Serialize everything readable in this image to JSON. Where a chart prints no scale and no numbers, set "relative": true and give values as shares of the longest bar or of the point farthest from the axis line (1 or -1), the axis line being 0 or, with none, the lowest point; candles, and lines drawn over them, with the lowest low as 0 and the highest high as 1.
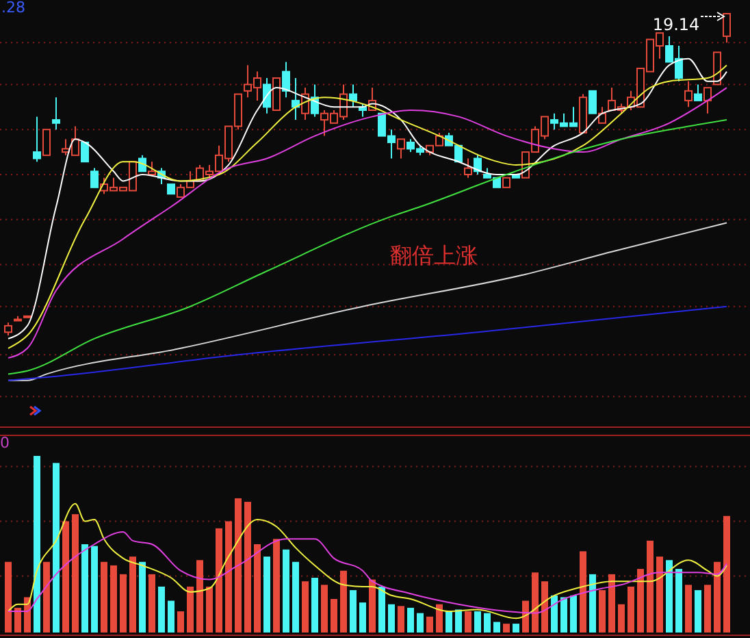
{
  "chart_data": [
    {
      "type": "candlestick",
      "relative": true,
      "ref_lines": [
        {
          "axis": "y",
          "value": 0.91,
          "color": "#8a1c1c",
          "line_style": "dotted"
        },
        {
          "axis": "y",
          "value": 0.78,
          "color": "#8a1c1c",
          "line_style": "dotted"
        },
        {
          "axis": "y",
          "value": 0.64,
          "color": "#8a1c1c",
          "line_style": "dotted"
        },
        {
          "axis": "y",
          "value": 0.5,
          "color": "#8a1c1c",
          "line_style": "dotted"
        },
        {
          "axis": "y",
          "value": 0.36,
          "color": "#8a1c1c",
          "line_style": "dotted"
        },
        {
          "axis": "y",
          "value": 0.22,
          "color": "#8a1c1c",
          "line_style": "dotted"
        },
        {
          "axis": "y",
          "value": 0.09,
          "color": "#8a1c1c",
          "line_style": "dotted"
        },
        {
          "axis": "y",
          "value": -0.06,
          "color": "#8a1c1c",
          "line_style": "dotted"
        },
        {
          "axis": "y",
          "value": -0.19,
          "color": "#8a1c1c",
          "line_style": "dotted"
        }
      ],
      "categories": [
        null,
        null,
        null,
        null,
        null,
        null,
        null,
        null,
        null,
        null,
        null,
        null,
        null,
        null,
        null,
        null,
        null,
        null,
        null,
        null,
        null,
        null,
        null,
        null,
        null,
        null,
        null,
        null,
        null,
        null,
        null,
        null,
        null,
        null,
        null,
        null,
        null,
        null,
        null,
        null,
        null,
        null,
        null,
        null,
        null,
        null,
        null,
        null,
        null,
        null,
        null,
        null,
        null,
        null,
        null,
        null,
        null,
        null,
        null,
        null,
        null,
        null,
        null,
        null,
        null,
        null,
        null,
        null,
        null,
        null,
        null,
        null,
        null,
        null,
        null,
        null
      ],
      "ohlc": [
        [
          0.01,
          0.04,
          0,
          0.03
        ],
        [
          0.05,
          0.06,
          0.05,
          0.05
        ],
        [
          0.06,
          0.06,
          0.06,
          0.06
        ],
        [
          0.57,
          0.68,
          0.54,
          0.55
        ],
        [
          0.56,
          0.64,
          0.56,
          0.64
        ],
        [
          0.67,
          0.74,
          0.64,
          0.66
        ],
        [
          0.57,
          0.61,
          0.56,
          0.58
        ],
        [
          0.56,
          0.65,
          0.56,
          0.61
        ],
        [
          0.6,
          0.6,
          0.54,
          0.54
        ],
        [
          0.51,
          0.52,
          0.46,
          0.46
        ],
        [
          0.45,
          0.49,
          0.44,
          0.47
        ],
        [
          0.45,
          0.49,
          0.45,
          0.46
        ],
        [
          0.45,
          0.46,
          0.45,
          0.46
        ],
        [
          0.45,
          0.54,
          0.45,
          0.54
        ],
        [
          0.55,
          0.56,
          0.51,
          0.51
        ],
        [
          0.5,
          0.54,
          0.5,
          0.51
        ],
        [
          0.51,
          0.52,
          0.47,
          0.49
        ],
        [
          0.47,
          0.47,
          0.44,
          0.44
        ],
        [
          0.43,
          0.47,
          0.43,
          0.46
        ],
        [
          0.46,
          0.51,
          0.46,
          0.48
        ],
        [
          0.48,
          0.53,
          0.48,
          0.52
        ],
        [
          0.5,
          0.53,
          0.49,
          0.51
        ],
        [
          0.51,
          0.59,
          0.51,
          0.56
        ],
        [
          0.55,
          0.65,
          0.54,
          0.65
        ],
        [
          0.65,
          0.75,
          0.64,
          0.75
        ],
        [
          0.76,
          0.84,
          0.74,
          0.78
        ],
        [
          0.77,
          0.82,
          0.73,
          0.8
        ],
        [
          0.78,
          0.8,
          0.69,
          0.71
        ],
        [
          0.7,
          0.8,
          0.7,
          0.8
        ],
        [
          0.82,
          0.85,
          0.74,
          0.76
        ],
        [
          0.73,
          0.8,
          0.67,
          0.71
        ],
        [
          0.69,
          0.77,
          0.67,
          0.75
        ],
        [
          0.74,
          0.78,
          0.68,
          0.69
        ],
        [
          0.67,
          0.7,
          0.62,
          0.69
        ],
        [
          0.66,
          0.7,
          0.66,
          0.69
        ],
        [
          0.68,
          0.78,
          0.67,
          0.75
        ],
        [
          0.75,
          0.78,
          0.71,
          0.73
        ],
        [
          0.71,
          0.72,
          0.68,
          0.7
        ],
        [
          0.7,
          0.77,
          0.7,
          0.73
        ],
        [
          0.69,
          0.69,
          0.62,
          0.62
        ],
        [
          0.62,
          0.64,
          0.55,
          0.6
        ],
        [
          0.58,
          0.61,
          0.55,
          0.61
        ],
        [
          0.6,
          0.61,
          0.57,
          0.58
        ],
        [
          0.58,
          0.59,
          0.56,
          0.57
        ],
        [
          0.57,
          0.59,
          0.56,
          0.59
        ],
        [
          0.59,
          0.63,
          0.59,
          0.62
        ],
        [
          0.62,
          0.63,
          0.59,
          0.59
        ],
        [
          0.59,
          0.59,
          0.54,
          0.54
        ],
        [
          0.5,
          0.55,
          0.49,
          0.52
        ],
        [
          0.55,
          0.56,
          0.5,
          0.51
        ],
        [
          0.5,
          0.52,
          0.49,
          0.49
        ],
        [
          0.49,
          0.49,
          0.46,
          0.46
        ],
        [
          0.46,
          0.49,
          0.46,
          0.49
        ],
        [
          0.5,
          0.5,
          0.49,
          0.49
        ],
        [
          0.49,
          0.57,
          0.49,
          0.57
        ],
        [
          0.57,
          0.65,
          0.57,
          0.64
        ],
        [
          0.62,
          0.68,
          0.61,
          0.68
        ],
        [
          0.67,
          0.69,
          0.64,
          0.66
        ],
        [
          0.66,
          0.69,
          0.65,
          0.65
        ],
        [
          0.66,
          0.71,
          0.65,
          0.65
        ],
        [
          0.63,
          0.75,
          0.63,
          0.74
        ],
        [
          0.76,
          0.76,
          0.69,
          0.69
        ],
        [
          0.66,
          0.71,
          0.66,
          0.69
        ],
        [
          0.7,
          0.77,
          0.7,
          0.73
        ],
        [
          0.7,
          0.72,
          0.69,
          0.71
        ],
        [
          0.71,
          0.76,
          0.7,
          0.74
        ],
        [
          0.71,
          0.83,
          0.71,
          0.83
        ],
        [
          0.82,
          0.92,
          0.82,
          0.92
        ],
        [
          0.9,
          0.94,
          0.86,
          0.94
        ],
        [
          0.9,
          0.93,
          0.85,
          0.85
        ],
        [
          0.86,
          0.9,
          0.79,
          0.8
        ],
        [
          0.73,
          0.79,
          0.71,
          0.76
        ],
        [
          0.75,
          0.78,
          0.73,
          0.73
        ],
        [
          0.73,
          0.77,
          0.69,
          0.77
        ],
        [
          0.78,
          0.88,
          0.78,
          0.88
        ],
        [
          0.93,
          1,
          0.91,
          1
        ]
      ],
      "colors": [
        "#e84b3c",
        "#e84b3c",
        "#e84b3c",
        "#4cf5f5",
        "#e84b3c",
        "#4cf5f5",
        "#e84b3c",
        "#e84b3c",
        "#4cf5f5",
        "#4cf5f5",
        "#e84b3c",
        "#e84b3c",
        "#e84b3c",
        "#e84b3c",
        "#4cf5f5",
        "#e84b3c",
        "#4cf5f5",
        "#4cf5f5",
        "#e84b3c",
        "#e84b3c",
        "#e84b3c",
        "#e84b3c",
        "#e84b3c",
        "#e84b3c",
        "#e84b3c",
        "#e84b3c",
        "#e84b3c",
        "#4cf5f5",
        "#e84b3c",
        "#4cf5f5",
        "#4cf5f5",
        "#e84b3c",
        "#4cf5f5",
        "#e84b3c",
        "#e84b3c",
        "#e84b3c",
        "#4cf5f5",
        "#4cf5f5",
        "#e84b3c",
        "#4cf5f5",
        "#4cf5f5",
        "#e84b3c",
        "#4cf5f5",
        "#4cf5f5",
        "#e84b3c",
        "#e84b3c",
        "#4cf5f5",
        "#4cf5f5",
        "#e84b3c",
        "#4cf5f5",
        "#4cf5f5",
        "#4cf5f5",
        "#e84b3c",
        "#4cf5f5",
        "#e84b3c",
        "#e84b3c",
        "#e84b3c",
        "#4cf5f5",
        "#4cf5f5",
        "#4cf5f5",
        "#e84b3c",
        "#4cf5f5",
        "#e84b3c",
        "#e84b3c",
        "#e84b3c",
        "#e84b3c",
        "#e84b3c",
        "#e84b3c",
        "#e84b3c",
        "#4cf5f5",
        "#4cf5f5",
        "#e84b3c",
        "#4cf5f5",
        "#e84b3c",
        "#e84b3c",
        "#e84b3c"
      ],
      "series": [
        {
          "type": "line",
          "color": "#ffffff",
          "values": [
            -0.01,
            null,
            0.03,
            null,
            null,
            0.4,
            null,
            0.61,
            0.6,
            null,
            null,
            0.51,
            0.48,
            null,
            0.5,
            null,
            null,
            null,
            0.48,
            null,
            0.48,
            null,
            null,
            0.53,
            null,
            null,
            0.7,
            null,
            0.77,
            null,
            null,
            0.74,
            null,
            null,
            0.71,
            null,
            null,
            0.71,
            0.72,
            null,
            null,
            0.67,
            null,
            0.59,
            null,
            null,
            null,
            0.54,
            null,
            null,
            null,
            0.5,
            null,
            0.5,
            null,
            null,
            null,
            0.59,
            null,
            null,
            0.63,
            null,
            0.69,
            null,
            null,
            null,
            0.72,
            null,
            null,
            0.84,
            null,
            0.86,
            null,
            0.79,
            0.79,
            0.82
          ]
        },
        {
          "type": "line",
          "color": "#f0f040",
          "values": [
            -0.04,
            null,
            0,
            null,
            null,
            null,
            null,
            null,
            0.36,
            null,
            null,
            null,
            0.54,
            0.54,
            null,
            null,
            null,
            null,
            0.48,
            null,
            null,
            null,
            0.5,
            null,
            null,
            null,
            0.6,
            null,
            null,
            null,
            0.71,
            null,
            null,
            0.74,
            null,
            null,
            null,
            null,
            0.71,
            null,
            null,
            0.67,
            null,
            null,
            null,
            0.62,
            null,
            null,
            null,
            null,
            0.55,
            null,
            null,
            0.53,
            null,
            null,
            null,
            null,
            0.56,
            null,
            0.59,
            null,
            null,
            null,
            0.69,
            null,
            null,
            0.77,
            null,
            0.79,
            null,
            null,
            null,
            0.8,
            null,
            0.84
          ]
        },
        {
          "type": "line",
          "color": "#e040e0",
          "values": [
            -0.07,
            null,
            -0.04,
            null,
            null,
            0.14,
            null,
            null,
            null,
            null,
            null,
            null,
            0.3,
            null,
            null,
            null,
            null,
            0.4,
            null,
            null,
            null,
            null,
            null,
            0.52,
            null,
            null,
            null,
            0.55,
            null,
            null,
            null,
            null,
            0.62,
            null,
            null,
            null,
            null,
            null,
            0.68,
            null,
            null,
            null,
            0.7,
            null,
            null,
            null,
            null,
            0.68,
            null,
            null,
            null,
            null,
            0.62,
            null,
            null,
            null,
            null,
            0.58,
            null,
            null,
            0.57,
            null,
            null,
            null,
            0.61,
            null,
            null,
            null,
            null,
            0.66,
            null,
            null,
            null,
            0.73,
            null,
            0.77
          ]
        },
        {
          "type": "line",
          "color": "#40e040",
          "values": [
            -0.12,
            null,
            -0.11,
            null,
            null,
            null,
            null,
            null,
            null,
            -0.01,
            null,
            null,
            null,
            null,
            null,
            null,
            null,
            null,
            null,
            0.09,
            null,
            null,
            null,
            null,
            null,
            null,
            null,
            0.2,
            null,
            null,
            null,
            null,
            null,
            null,
            null,
            null,
            null,
            null,
            null,
            null,
            0.37,
            null,
            null,
            0.4,
            null,
            null,
            null,
            null,
            null,
            null,
            null,
            null,
            0.5,
            null,
            null,
            null,
            null,
            null,
            null,
            0.57,
            null,
            null,
            null,
            null,
            0.61,
            null,
            null,
            null,
            null,
            null,
            null,
            0.65,
            null,
            null,
            null,
            0.67
          ]
        },
        {
          "type": "line",
          "color": "#d8d8d8",
          "values": [
            -0.14,
            null,
            -0.14,
            null,
            -0.12,
            null,
            null,
            null,
            null,
            null,
            null,
            null,
            null,
            null,
            null,
            null,
            null,
            null,
            -0.04,
            null,
            null,
            null,
            null,
            null,
            null,
            null,
            null,
            null,
            null,
            null,
            null,
            null,
            null,
            null,
            null,
            null,
            null,
            0.09,
            null,
            null,
            null,
            null,
            null,
            null,
            null,
            null,
            null,
            null,
            null,
            null,
            null,
            null,
            null,
            null,
            0.19,
            null,
            null,
            null,
            null,
            null,
            null,
            null,
            null,
            0.26,
            null,
            null,
            null,
            null,
            null,
            null,
            null,
            null,
            null,
            null,
            null,
            0.35
          ]
        },
        {
          "type": "line",
          "color": "#2828e8",
          "values": [
            -0.14,
            null,
            null,
            null,
            -0.13,
            null,
            null,
            null,
            null,
            null,
            null,
            null,
            null,
            null,
            null,
            null,
            null,
            null,
            null,
            null,
            null,
            null,
            null,
            null,
            -0.06,
            null,
            null,
            null,
            null,
            null,
            null,
            null,
            null,
            null,
            null,
            null,
            null,
            null,
            null,
            null,
            null,
            null,
            null,
            null,
            null,
            null,
            null,
            null,
            null,
            0.01,
            null,
            null,
            null,
            null,
            null,
            null,
            null,
            null,
            null,
            null,
            null,
            null,
            null,
            null,
            null,
            null,
            null,
            null,
            null,
            null,
            null,
            null,
            null,
            null,
            null,
            0.09
          ]
        }
      ],
      "annotations": [
        ".28",
        "19.14",
        "翻倍上涨"
      ]
    },
    {
      "type": "bar",
      "relative": true,
      "ref_lines": [
        {
          "axis": "y",
          "value": 0.94,
          "color": "#8a1c1c",
          "line_style": "dotted"
        },
        {
          "axis": "y",
          "value": 0.63,
          "color": "#8a1c1c",
          "line_style": "dotted"
        },
        {
          "axis": "y",
          "value": 0.32,
          "color": "#8a1c1c",
          "line_style": "dotted"
        }
      ],
      "categories": [
        null,
        null,
        null,
        null,
        null,
        null,
        null,
        null,
        null,
        null,
        null,
        null,
        null,
        null,
        null,
        null,
        null,
        null,
        null,
        null,
        null,
        null,
        null,
        null,
        null,
        null,
        null,
        null,
        null,
        null,
        null,
        null,
        null,
        null,
        null,
        null,
        null,
        null,
        null,
        null,
        null,
        null,
        null,
        null,
        null,
        null,
        null,
        null,
        null,
        null,
        null,
        null,
        null,
        null,
        null,
        null,
        null,
        null,
        null,
        null,
        null,
        null,
        null,
        null,
        null,
        null,
        null,
        null,
        null,
        null,
        null,
        null,
        null,
        null,
        null,
        null
      ],
      "values": [
        0.4,
        0.14,
        0.2,
        1,
        0.4,
        0.96,
        0.63,
        0.67,
        0.5,
        0.49,
        0.4,
        0.38,
        0.33,
        0.43,
        0.4,
        0.33,
        0.26,
        0.18,
        0.12,
        0.26,
        0.41,
        0.26,
        0.59,
        0.63,
        0.76,
        0.74,
        0.5,
        0.43,
        0.53,
        0.47,
        0.4,
        0.29,
        0.31,
        0.27,
        0.19,
        0.35,
        0.24,
        0.17,
        0.3,
        0.26,
        0.16,
        0.15,
        0.14,
        0.11,
        0.09,
        0.16,
        0.12,
        0.13,
        0.12,
        0.12,
        0.11,
        0.06,
        0.05,
        0.05,
        0.18,
        0.34,
        0.29,
        0.21,
        0.2,
        0.21,
        0.46,
        0.33,
        0.24,
        0.33,
        0.16,
        0.26,
        0.36,
        0.52,
        0.43,
        0.41,
        0.36,
        0.27,
        0.24,
        0.27,
        0.4,
        0.66
      ],
      "colors": [
        "#e84b3c",
        "#e84b3c",
        "#e84b3c",
        "#4cf5f5",
        "#e84b3c",
        "#4cf5f5",
        "#e84b3c",
        "#e84b3c",
        "#4cf5f5",
        "#4cf5f5",
        "#e84b3c",
        "#e84b3c",
        "#e84b3c",
        "#e84b3c",
        "#4cf5f5",
        "#e84b3c",
        "#4cf5f5",
        "#4cf5f5",
        "#e84b3c",
        "#e84b3c",
        "#e84b3c",
        "#e84b3c",
        "#e84b3c",
        "#e84b3c",
        "#e84b3c",
        "#e84b3c",
        "#e84b3c",
        "#4cf5f5",
        "#e84b3c",
        "#4cf5f5",
        "#4cf5f5",
        "#e84b3c",
        "#4cf5f5",
        "#e84b3c",
        "#e84b3c",
        "#e84b3c",
        "#4cf5f5",
        "#4cf5f5",
        "#e84b3c",
        "#4cf5f5",
        "#4cf5f5",
        "#e84b3c",
        "#4cf5f5",
        "#4cf5f5",
        "#e84b3c",
        "#e84b3c",
        "#4cf5f5",
        "#4cf5f5",
        "#e84b3c",
        "#4cf5f5",
        "#4cf5f5",
        "#4cf5f5",
        "#e84b3c",
        "#4cf5f5",
        "#e84b3c",
        "#e84b3c",
        "#e84b3c",
        "#4cf5f5",
        "#4cf5f5",
        "#4cf5f5",
        "#e84b3c",
        "#4cf5f5",
        "#e84b3c",
        "#e84b3c",
        "#e84b3c",
        "#e84b3c",
        "#e84b3c",
        "#e84b3c",
        "#e84b3c",
        "#4cf5f5",
        "#4cf5f5",
        "#e84b3c",
        "#4cf5f5",
        "#e84b3c",
        "#e84b3c",
        "#e84b3c"
      ],
      "series": [
        {
          "type": "line",
          "color": "#f0f040",
          "values": [
            0.12,
            0.16,
            0.16,
            0.35,
            null,
            0.52,
            null,
            0.73,
            0.63,
            0.64,
            0.53,
            null,
            0.42,
            null,
            0.38,
            null,
            null,
            0.31,
            null,
            0.23,
            null,
            0.25,
            null,
            0.43,
            null,
            null,
            0.64,
            null,
            0.6,
            null,
            0.48,
            null,
            0.38,
            null,
            null,
            0.27,
            null,
            0.26,
            0.26,
            null,
            0.21,
            null,
            0.19,
            null,
            null,
            null,
            0.12,
            null,
            null,
            0.13,
            null,
            null,
            null,
            0.08,
            null,
            null,
            null,
            0.21,
            null,
            null,
            0.26,
            null,
            null,
            0.29,
            null,
            null,
            null,
            0.29,
            null,
            null,
            null,
            0.41,
            null,
            0.35,
            0.32,
            0.38
          ]
        },
        {
          "type": "line",
          "color": "#e040e0",
          "values": [
            0.12,
            null,
            0.12,
            0.19,
            null,
            0.33,
            null,
            null,
            null,
            0.5,
            null,
            null,
            0.57,
            0.52,
            null,
            0.5,
            null,
            null,
            0.35,
            null,
            null,
            0.3,
            null,
            null,
            0.38,
            null,
            null,
            null,
            null,
            0.53,
            null,
            null,
            0.53,
            null,
            0.42,
            null,
            null,
            0.35,
            0.29,
            null,
            null,
            null,
            0.22,
            null,
            null,
            null,
            null,
            0.16,
            null,
            null,
            null,
            null,
            0.12,
            null,
            null,
            0.11,
            null,
            null,
            0.19,
            null,
            null,
            null,
            0.25,
            null,
            0.27,
            null,
            null,
            null,
            0.34,
            null,
            null,
            null,
            0.34,
            null,
            0.33,
            0.39
          ]
        }
      ],
      "annotations": [
        "0"
      ]
    }
  ]
}
